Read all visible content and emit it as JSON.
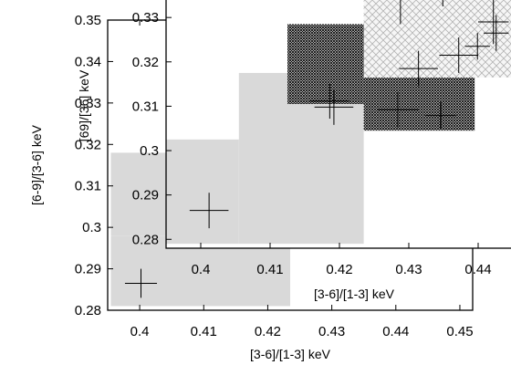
{
  "chart_data": [
    {
      "type": "scatter",
      "title": "",
      "xlabel": "[3-6]/[1-3] keV",
      "ylabel": "[6-9]/[3-6] keV",
      "xlim": [
        0.395,
        0.452
      ],
      "ylim": [
        0.28,
        0.35
      ],
      "xticks": [
        "0.4",
        "0.41",
        "0.42",
        "0.43",
        "0.44",
        "0.45"
      ],
      "yticks": [
        "0.28",
        "0.29",
        "0.3",
        "0.31",
        "0.32",
        "0.33",
        "0.34",
        "0.35"
      ],
      "grid": false,
      "regions": [
        {
          "fill": "#d9d9d9",
          "pattern": "solid",
          "x": [
            0.3955,
            0.4235
          ],
          "y": [
            0.281,
            0.298
          ]
        },
        {
          "fill": "#d9d9d9",
          "pattern": "solid",
          "x": [
            0.3955,
            0.433
          ],
          "y": [
            0.298,
            0.318
          ]
        },
        {
          "fill": "#d9d9d9",
          "pattern": "solid",
          "x": [
            0.4045,
            0.433
          ],
          "y": [
            0.318,
            0.335
          ]
        }
      ],
      "points": [
        {
          "x": 0.4002,
          "y": 0.2865,
          "xerr": 0.0025,
          "yerr": 0.0035
        },
        {
          "x": 0.4212,
          "y": 0.3345,
          "xerr": 0.0028,
          "yerr": 0.004
        }
      ]
    },
    {
      "type": "scatter",
      "title": "",
      "xlabel": "[3-6]/[1-3] keV",
      "ylabel": "[69]/[36] keV",
      "xlim": [
        0.395,
        0.445
      ],
      "ylim": [
        0.278,
        0.336
      ],
      "xticks": [
        "0.4",
        "0.41",
        "0.42",
        "0.43",
        "0.44"
      ],
      "yticks": [
        "0.28",
        "0.29",
        "0.3",
        "0.31",
        "0.32",
        "0.33",
        "0.34"
      ],
      "grid": false,
      "regions": [
        {
          "fill": "#d9d9d9",
          "pattern": "solid",
          "x": [
            0.395,
            0.4055
          ],
          "y": [
            0.279,
            0.3025
          ]
        },
        {
          "fill": "#d9d9d9",
          "pattern": "solid",
          "x": [
            0.4055,
            0.4235
          ],
          "y": [
            0.279,
            0.3175
          ]
        },
        {
          "fill": "#000000",
          "pattern": "crosshatch",
          "x": [
            0.4125,
            0.4235
          ],
          "y": [
            0.3105,
            0.3285
          ]
        },
        {
          "fill": "#000000",
          "pattern": "crosshatch",
          "x": [
            0.4235,
            0.4395
          ],
          "y": [
            0.3045,
            0.3165
          ]
        },
        {
          "fill": "#cccccc",
          "pattern": "light-crosshatch",
          "x": [
            0.4235,
            0.4535
          ],
          "y": [
            0.3165,
            0.3425
          ]
        }
      ],
      "points": [
        {
          "x": 0.4012,
          "y": 0.2865,
          "xerr": 0.0028,
          "yerr": 0.004
        },
        {
          "x": 0.4186,
          "y": 0.3112,
          "xerr": 0.0028,
          "yerr": 0.004
        },
        {
          "x": 0.4192,
          "y": 0.3098,
          "xerr": 0.0028,
          "yerr": 0.004
        },
        {
          "x": 0.4284,
          "y": 0.3092,
          "xerr": 0.003,
          "yerr": 0.004
        },
        {
          "x": 0.4346,
          "y": 0.3079,
          "xerr": 0.0022,
          "yerr": 0.003
        },
        {
          "x": 0.4288,
          "y": 0.3385,
          "xerr": 0.0075,
          "yerr": 0.01
        },
        {
          "x": 0.4349,
          "y": 0.3375,
          "xerr": 0.003,
          "yerr": 0.005
        },
        {
          "x": 0.4314,
          "y": 0.3185,
          "xerr": 0.0028,
          "yerr": 0.004
        },
        {
          "x": 0.4372,
          "y": 0.3215,
          "xerr": 0.0028,
          "yerr": 0.004
        },
        {
          "x": 0.4399,
          "y": 0.3235,
          "xerr": 0.0018,
          "yerr": 0.003
        },
        {
          "x": 0.4426,
          "y": 0.3265,
          "xerr": 0.0018,
          "yerr": 0.004
        },
        {
          "x": 0.4422,
          "y": 0.329,
          "xerr": 0.0022,
          "yerr": 0.005
        }
      ]
    }
  ]
}
